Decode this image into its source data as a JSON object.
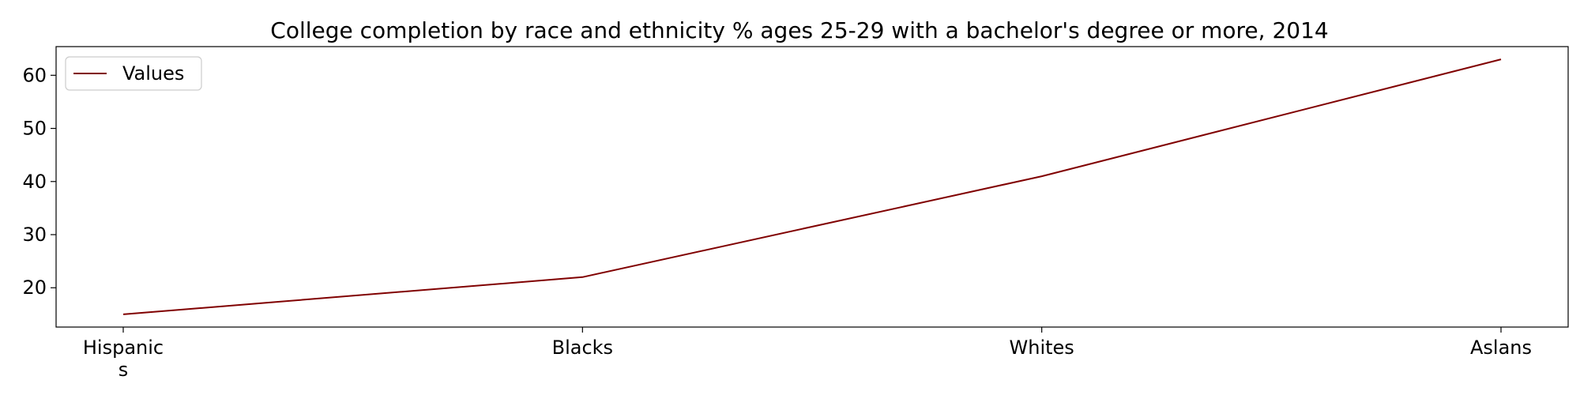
{
  "chart_data": {
    "type": "line",
    "title": "College completion by race and ethnicity % ages 25-29 with a bachelor's degree or more, 2014",
    "categories": [
      "Hispanic\ns",
      "Blacks",
      "Whites",
      "Aslans"
    ],
    "series": [
      {
        "name": "Values",
        "values": [
          15,
          22,
          41,
          63
        ],
        "color": "#800000"
      }
    ],
    "xlabel": "",
    "ylabel": "",
    "ylim": [
      12.6,
      65.4
    ],
    "yticks": [
      20,
      30,
      40,
      50,
      60
    ],
    "grid": false,
    "legend_position": "top-left"
  }
}
